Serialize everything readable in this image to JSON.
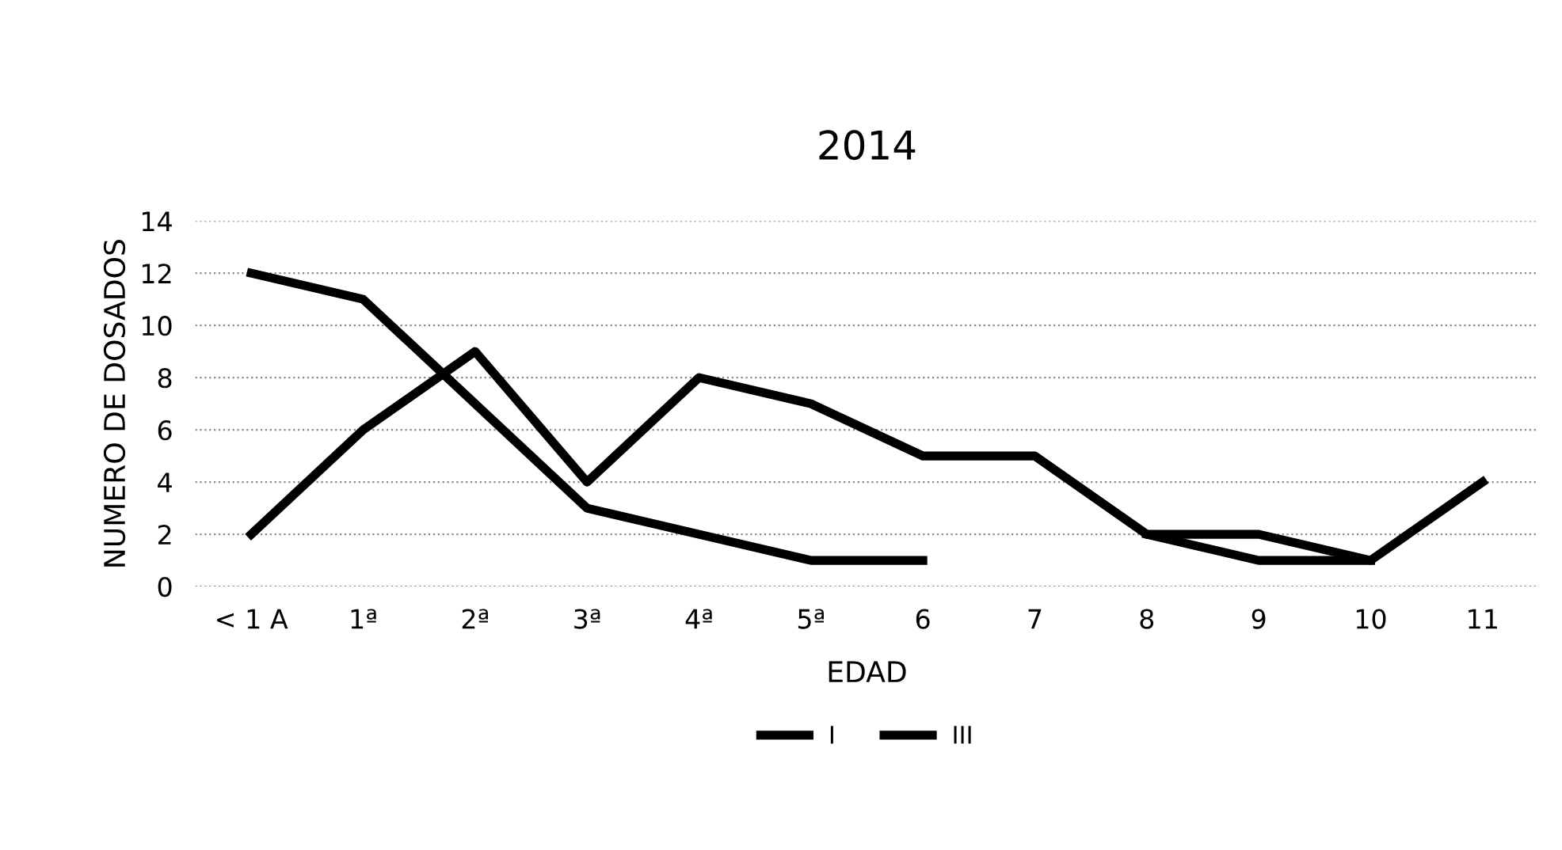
{
  "chart_data": {
    "type": "line",
    "title": "2014",
    "xlabel": "EDAD",
    "ylabel": "NUMERO DE DOSADOS",
    "categories": [
      "< 1 A",
      "1ª",
      "2ª",
      "3ª",
      "4ª",
      "5ª",
      "6",
      "7",
      "8",
      "9",
      "10",
      "11"
    ],
    "series": [
      {
        "name": "I",
        "color": "#000000",
        "values": [
          12,
          11,
          7,
          3,
          2,
          1,
          1,
          null,
          2,
          1,
          1,
          null
        ]
      },
      {
        "name": "III",
        "color": "#000000",
        "values": [
          2,
          6,
          9,
          4,
          8,
          7,
          5,
          5,
          2,
          2,
          1,
          4
        ]
      }
    ],
    "ylim": [
      0,
      14
    ],
    "yticks": [
      0,
      2,
      4,
      6,
      8,
      10,
      12,
      14
    ],
    "grid": "y",
    "legend": "bottom",
    "marker": "none",
    "line_style": "solid"
  }
}
